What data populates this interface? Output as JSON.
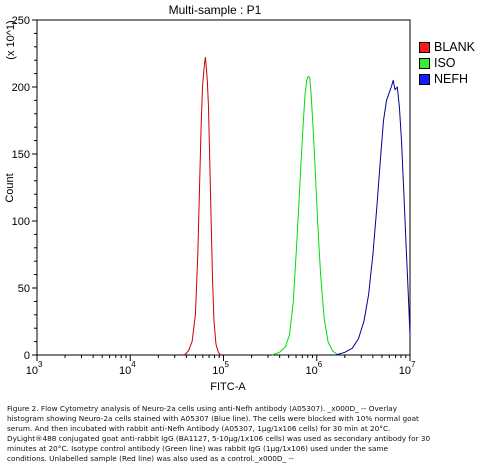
{
  "chart_data": {
    "type": "line",
    "title": "Multi-sample : P1",
    "xlabel": "FITC-A",
    "ylabel": "Count",
    "y_multiplier": "(x 10^1)",
    "x_scale": "log",
    "xlim": [
      1000,
      10000000
    ],
    "ylim": [
      0,
      250
    ],
    "x_ticks": [
      1000,
      10000,
      100000,
      1000000,
      10000000
    ],
    "x_tick_labels": [
      {
        "base": "10",
        "exp": "3"
      },
      {
        "base": "10",
        "exp": "4"
      },
      {
        "base": "10",
        "exp": "5"
      },
      {
        "base": "10",
        "exp": "6"
      },
      {
        "base": "10",
        "exp": "7"
      }
    ],
    "y_ticks": [
      0,
      50,
      100,
      150,
      200,
      250
    ],
    "y_tick_labels": [
      "0",
      "50",
      "100",
      "150",
      "200",
      "250"
    ],
    "legend_position": "right",
    "series": [
      {
        "name": "BLANK",
        "color": "#cc0000",
        "swatch_color": "#ff1a1a",
        "points": [
          [
            38000,
            0
          ],
          [
            42000,
            3
          ],
          [
            46000,
            10
          ],
          [
            50000,
            30
          ],
          [
            53000,
            75
          ],
          [
            55500,
            130
          ],
          [
            57500,
            170
          ],
          [
            59500,
            200
          ],
          [
            61500,
            212
          ],
          [
            63000,
            219
          ],
          [
            64000,
            222
          ],
          [
            65500,
            214
          ],
          [
            67000,
            205
          ],
          [
            69000,
            185
          ],
          [
            71000,
            150
          ],
          [
            73500,
            105
          ],
          [
            76000,
            60
          ],
          [
            79000,
            25
          ],
          [
            83000,
            8
          ],
          [
            88000,
            2
          ],
          [
            94000,
            0
          ]
        ]
      },
      {
        "name": "ISO",
        "color": "#00dd00",
        "swatch_color": "#33ee33",
        "points": [
          [
            330000,
            0
          ],
          [
            400000,
            2
          ],
          [
            460000,
            6
          ],
          [
            510000,
            15
          ],
          [
            560000,
            40
          ],
          [
            600000,
            75
          ],
          [
            640000,
            110
          ],
          [
            680000,
            145
          ],
          [
            720000,
            175
          ],
          [
            750000,
            195
          ],
          [
            780000,
            205
          ],
          [
            810000,
            208
          ],
          [
            840000,
            207
          ],
          [
            870000,
            195
          ],
          [
            910000,
            172
          ],
          [
            960000,
            140
          ],
          [
            1020000,
            100
          ],
          [
            1100000,
            60
          ],
          [
            1200000,
            28
          ],
          [
            1320000,
            10
          ],
          [
            1480000,
            3
          ],
          [
            1700000,
            0
          ]
        ]
      },
      {
        "name": "NEFH",
        "color": "#000099",
        "swatch_color": "#1a1aff",
        "points": [
          [
            1600000,
            0
          ],
          [
            2000000,
            2
          ],
          [
            2400000,
            5
          ],
          [
            2800000,
            12
          ],
          [
            3200000,
            25
          ],
          [
            3600000,
            45
          ],
          [
            4000000,
            75
          ],
          [
            4400000,
            110
          ],
          [
            4800000,
            145
          ],
          [
            5200000,
            175
          ],
          [
            5600000,
            190
          ],
          [
            6000000,
            196
          ],
          [
            6300000,
            200
          ],
          [
            6600000,
            205
          ],
          [
            6900000,
            198
          ],
          [
            7300000,
            200
          ],
          [
            7700000,
            185
          ],
          [
            8100000,
            160
          ],
          [
            8600000,
            120
          ],
          [
            9100000,
            80
          ],
          [
            9600000,
            45
          ],
          [
            10000000,
            15
          ]
        ]
      }
    ]
  },
  "caption_lines": [
    "Figure 2. Flow Cytometry analysis of Neuro-2a cells using anti-Nefh antibody (A05307). _x000D_ -- Overlay",
    "histogram showing Neuro-2a cells stained with A05307 (Blue line). The cells were blocked with 10% normal goat",
    "serum. And then incubated with rabbit anti-Nefh Antibody (A05307, 1μg/1x106 cells) for 30 min at 20°C.",
    "DyLight®488 conjugated goat anti-rabbit IgG (BA1127, 5-10μg/1x106 cells) was used as secondary antibody for 30",
    "minutes at 20°C. Isotype control antibody (Green line) was rabbit IgG (1μg/1x106) used under the same",
    "conditions. Unlabelled sample (Red line) was also used as a control._x000D_ --"
  ]
}
